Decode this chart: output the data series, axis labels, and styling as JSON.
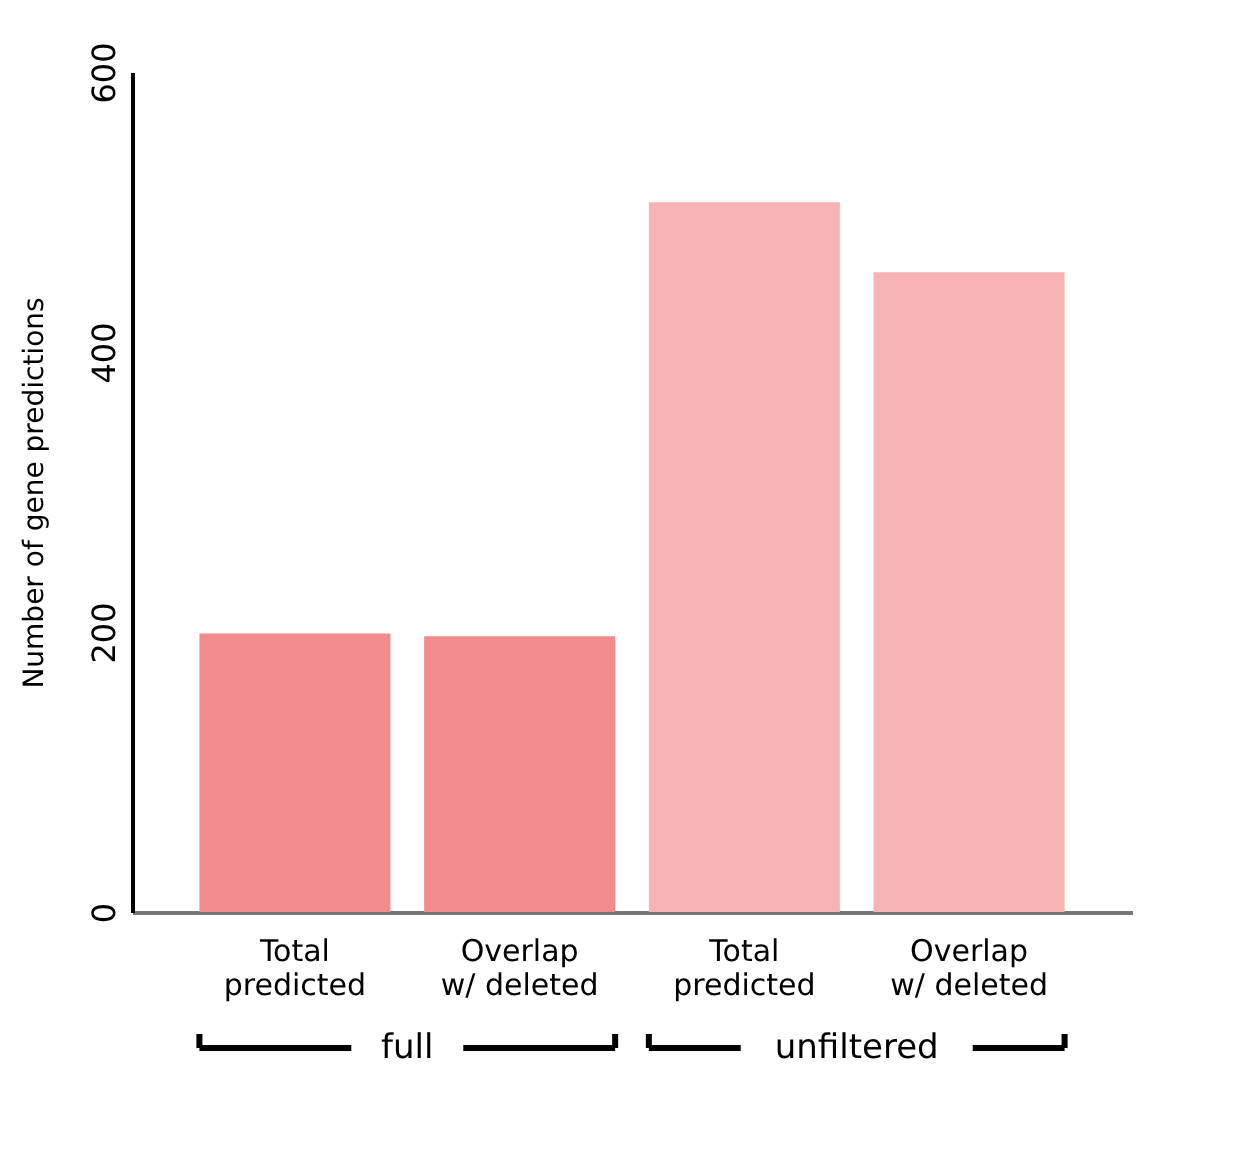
{
  "chart_data": {
    "type": "bar",
    "categories": [
      "Total\npredicted",
      "Overlap\nw/ deleted",
      "Total\npredicted",
      "Overlap\nw/ deleted"
    ],
    "values": [
      199,
      197,
      507,
      457
    ],
    "colors": [
      "#f28b8b",
      "#f28b8b",
      "#f7b3b3",
      "#f7b3b3"
    ],
    "ylabel": "Number of gene predictions",
    "ylim": [
      0,
      600
    ],
    "yticks": [
      0,
      200,
      400,
      600
    ],
    "annotations": [
      "full",
      "unfiltered"
    ],
    "grid": false
  }
}
